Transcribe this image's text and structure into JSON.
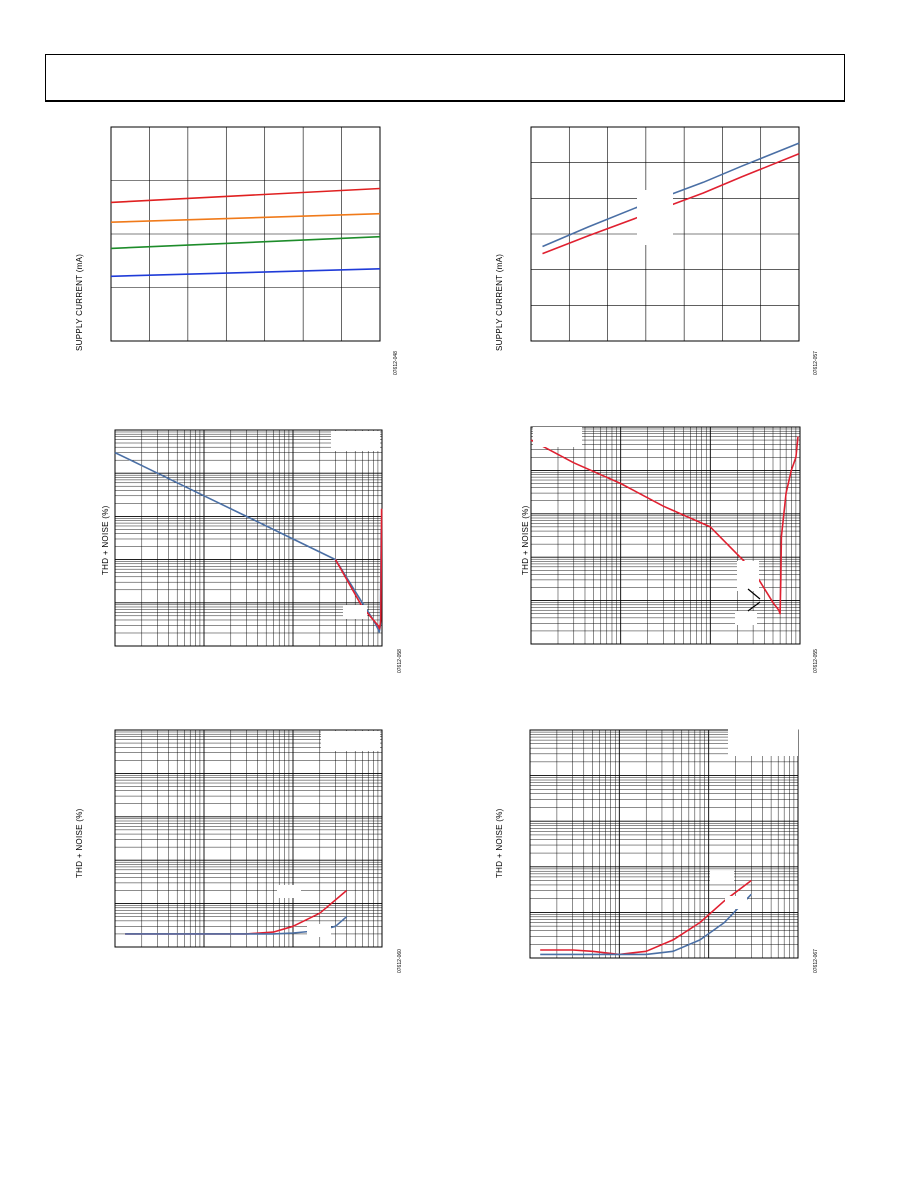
{
  "chart_data": [
    {
      "id": "supply-vs-temp",
      "type": "line",
      "ylabel": "SUPPLY CURRENT (mA)",
      "figure_id": "07612-048",
      "grid": {
        "xdivs": 7,
        "ydivs": 4
      },
      "xlim": [
        0,
        7
      ],
      "ylim": [
        0,
        4
      ],
      "series": [
        {
          "color": "#e02020",
          "x": [
            0,
            7
          ],
          "y": [
            2.59,
            2.85
          ]
        },
        {
          "color": "#f07a1a",
          "x": [
            0,
            7
          ],
          "y": [
            2.22,
            2.38
          ]
        },
        {
          "color": "#1d8c2a",
          "x": [
            0,
            7
          ],
          "y": [
            1.73,
            1.95
          ]
        },
        {
          "color": "#1f3bd8",
          "x": [
            0,
            7
          ],
          "y": [
            1.21,
            1.35
          ]
        }
      ]
    },
    {
      "id": "supply-vs-voltage",
      "type": "line",
      "ylabel": "SUPPLY CURRENT (mA)",
      "figure_id": "07612-057",
      "grid": {
        "xdivs": 7,
        "ydivs": 6
      },
      "xlim": [
        0,
        7
      ],
      "ylim": [
        0,
        6
      ],
      "series": [
        {
          "color": "#4a6fa5",
          "x": [
            0.3,
            1.5,
            3.0,
            4.5,
            5.5,
            7.0
          ],
          "y": [
            2.65,
            3.2,
            3.85,
            4.45,
            4.9,
            5.55
          ]
        },
        {
          "color": "#e02030",
          "x": [
            0.3,
            1.5,
            3.0,
            4.5,
            5.5,
            7.0
          ],
          "y": [
            2.45,
            2.95,
            3.55,
            4.15,
            4.6,
            5.25
          ]
        }
      ]
    },
    {
      "id": "thdn-vs-power-1",
      "type": "line",
      "ylabel": "THD + NOISE (%)",
      "figure_id": "07612-058",
      "xscale": "log",
      "yscale": "log",
      "xlim": [
        1,
        1000
      ],
      "ylim": [
        0.001,
        100
      ],
      "series": [
        {
          "color": "#4a6fa5",
          "x": [
            1,
            3,
            10,
            30,
            100,
            300,
            600,
            800,
            900,
            930,
            960,
            980
          ],
          "y": [
            30,
            10,
            3,
            1,
            0.3,
            0.1,
            0.01,
            0.004,
            0.0025,
            0.0021,
            0.003,
            0.5
          ]
        },
        {
          "color": "#e02030",
          "x": [
            300,
            600,
            800,
            900,
            940,
            970,
            990
          ],
          "y": [
            0.1,
            0.008,
            0.004,
            0.003,
            0.0025,
            0.004,
            1.5
          ]
        }
      ]
    },
    {
      "id": "thdn-vs-power-2",
      "type": "line",
      "ylabel": "THD + NOISE (%)",
      "figure_id": "07612-055",
      "xscale": "log",
      "yscale": "log",
      "xlim": [
        1,
        1000
      ],
      "ylim": [
        0.001,
        100
      ],
      "series": [
        {
          "color": "#e02030",
          "x": [
            1,
            3,
            10,
            30,
            100,
            300,
            500,
            580,
            600,
            610,
            620,
            700,
            800,
            900,
            950
          ],
          "y": [
            50,
            15,
            5,
            1.5,
            0.5,
            0.05,
            0.009,
            0.006,
            0.005,
            0.03,
            0.3,
            3,
            10,
            20,
            60
          ]
        }
      ]
    },
    {
      "id": "thdn-vs-freq-1",
      "type": "line",
      "ylabel": "THD + NOISE (%)",
      "figure_id": "07612-060",
      "xscale": "log",
      "yscale": "log",
      "xlim": [
        1,
        1000
      ],
      "ylim": [
        0.001,
        100
      ],
      "series": [
        {
          "color": "#e02030",
          "x": [
            1.3,
            10,
            30,
            60,
            100,
            200,
            400
          ],
          "y": [
            0.002,
            0.002,
            0.002,
            0.0022,
            0.003,
            0.006,
            0.02
          ]
        },
        {
          "color": "#4a6fa5",
          "x": [
            1.3,
            10,
            30,
            60,
            100,
            200,
            300,
            400
          ],
          "y": [
            0.002,
            0.002,
            0.002,
            0.002,
            0.0021,
            0.0024,
            0.003,
            0.005
          ]
        }
      ]
    },
    {
      "id": "thdn-vs-freq-2",
      "type": "line",
      "ylabel": "THD + NOISE (%)",
      "figure_id": "07612-067",
      "xscale": "log",
      "yscale": "log",
      "xlim": [
        1,
        1000
      ],
      "ylim": [
        0.001,
        100
      ],
      "series": [
        {
          "color": "#e02030",
          "x": [
            1.3,
            3,
            5,
            10,
            20,
            40,
            80,
            150,
            300
          ],
          "y": [
            0.0015,
            0.0015,
            0.0014,
            0.0012,
            0.0014,
            0.0025,
            0.006,
            0.018,
            0.05
          ]
        },
        {
          "color": "#4a6fa5",
          "x": [
            1.3,
            5,
            10,
            20,
            40,
            80,
            150,
            300
          ],
          "y": [
            0.0012,
            0.0012,
            0.0012,
            0.0012,
            0.0014,
            0.0025,
            0.006,
            0.025
          ]
        }
      ]
    }
  ]
}
